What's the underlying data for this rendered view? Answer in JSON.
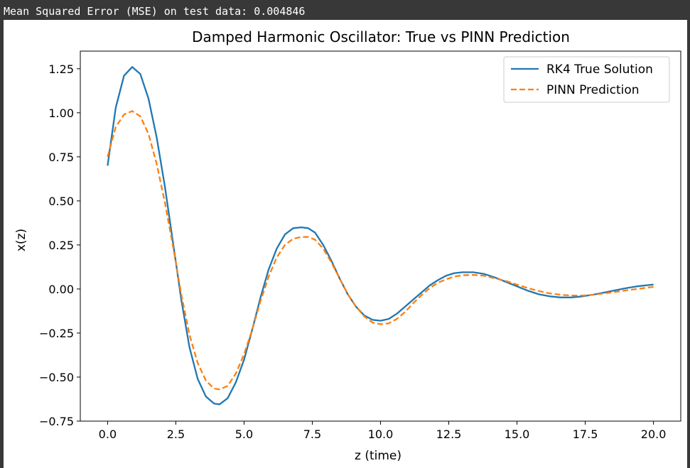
{
  "output": {
    "text": "Mean Squared Error (MSE) on test data: 0.004846"
  },
  "colors": {
    "page_background": "#383838",
    "figure_background": "#ffffff",
    "series_true": "#1f77b4",
    "series_pinn": "#ff7f0e"
  },
  "chart_data": {
    "type": "line",
    "title": "Damped Harmonic Oscillator: True vs PINN Prediction",
    "xlabel": "z (time)",
    "ylabel": "x(z)",
    "xlim": [
      -1.0,
      21.0
    ],
    "ylim": [
      -0.75,
      1.35
    ],
    "x_ticks": [
      0.0,
      2.5,
      5.0,
      7.5,
      10.0,
      12.5,
      15.0,
      17.5,
      20.0
    ],
    "x_tick_labels": [
      "0.0",
      "2.5",
      "5.0",
      "7.5",
      "10.0",
      "12.5",
      "15.0",
      "17.5",
      "20.0"
    ],
    "y_ticks": [
      -0.75,
      -0.5,
      -0.25,
      0.0,
      0.25,
      0.5,
      0.75,
      1.0,
      1.25
    ],
    "y_tick_labels": [
      "−0.75",
      "−0.50",
      "−0.25",
      "0.00",
      "0.25",
      "0.50",
      "0.75",
      "1.00",
      "1.25"
    ],
    "grid": false,
    "legend_position": "top-right",
    "series": [
      {
        "name": "RK4 True Solution",
        "style": "solid",
        "color": "#1f77b4",
        "x": [
          0,
          0.3,
          0.6,
          0.9,
          1.2,
          1.5,
          1.8,
          2.1,
          2.4,
          2.7,
          3.0,
          3.3,
          3.6,
          3.9,
          4.1,
          4.4,
          4.7,
          5.0,
          5.3,
          5.6,
          5.9,
          6.2,
          6.5,
          6.8,
          7.1,
          7.35,
          7.6,
          7.9,
          8.2,
          8.5,
          8.8,
          9.1,
          9.4,
          9.7,
          10.0,
          10.3,
          10.6,
          10.9,
          11.2,
          11.5,
          11.8,
          12.1,
          12.4,
          12.7,
          13.0,
          13.4,
          13.8,
          14.2,
          14.6,
          15.0,
          15.4,
          15.8,
          16.2,
          16.6,
          17.0,
          17.4,
          17.8,
          18.2,
          18.6,
          19.0,
          19.4,
          19.8,
          20.0
        ],
        "y": [
          0.7,
          1.03,
          1.21,
          1.26,
          1.22,
          1.08,
          0.86,
          0.58,
          0.26,
          -0.06,
          -0.33,
          -0.51,
          -0.61,
          -0.65,
          -0.655,
          -0.62,
          -0.53,
          -0.4,
          -0.23,
          -0.05,
          0.11,
          0.23,
          0.31,
          0.345,
          0.35,
          0.345,
          0.32,
          0.25,
          0.16,
          0.06,
          -0.03,
          -0.1,
          -0.15,
          -0.175,
          -0.18,
          -0.17,
          -0.14,
          -0.1,
          -0.06,
          -0.02,
          0.02,
          0.05,
          0.075,
          0.09,
          0.095,
          0.095,
          0.085,
          0.065,
          0.04,
          0.015,
          -0.01,
          -0.03,
          -0.042,
          -0.048,
          -0.048,
          -0.042,
          -0.032,
          -0.02,
          -0.007,
          0.005,
          0.015,
          0.022,
          0.025
        ]
      },
      {
        "name": "PINN Prediction",
        "style": "dashed",
        "color": "#ff7f0e",
        "x": [
          0,
          0.3,
          0.6,
          0.9,
          1.2,
          1.5,
          1.8,
          2.1,
          2.4,
          2.7,
          3.0,
          3.3,
          3.6,
          3.9,
          4.1,
          4.4,
          4.7,
          5.0,
          5.3,
          5.6,
          5.9,
          6.2,
          6.5,
          6.8,
          7.1,
          7.35,
          7.6,
          7.9,
          8.2,
          8.5,
          8.8,
          9.1,
          9.4,
          9.7,
          10.0,
          10.3,
          10.6,
          10.9,
          11.2,
          11.5,
          11.8,
          12.1,
          12.4,
          12.7,
          13.0,
          13.4,
          13.8,
          14.2,
          14.6,
          15.0,
          15.4,
          15.8,
          16.2,
          16.6,
          17.0,
          17.4,
          17.8,
          18.2,
          18.6,
          19.0,
          19.4,
          19.8,
          20.0
        ],
        "y": [
          0.75,
          0.92,
          0.99,
          1.01,
          0.98,
          0.88,
          0.71,
          0.49,
          0.24,
          -0.03,
          -0.26,
          -0.42,
          -0.52,
          -0.565,
          -0.57,
          -0.55,
          -0.48,
          -0.37,
          -0.23,
          -0.07,
          0.07,
          0.18,
          0.25,
          0.285,
          0.295,
          0.295,
          0.28,
          0.23,
          0.15,
          0.06,
          -0.03,
          -0.1,
          -0.155,
          -0.19,
          -0.2,
          -0.195,
          -0.17,
          -0.13,
          -0.08,
          -0.035,
          0.005,
          0.035,
          0.055,
          0.07,
          0.078,
          0.08,
          0.075,
          0.06,
          0.045,
          0.025,
          0.005,
          -0.012,
          -0.025,
          -0.033,
          -0.037,
          -0.037,
          -0.033,
          -0.025,
          -0.017,
          -0.008,
          0.0,
          0.008,
          0.012
        ]
      }
    ]
  }
}
